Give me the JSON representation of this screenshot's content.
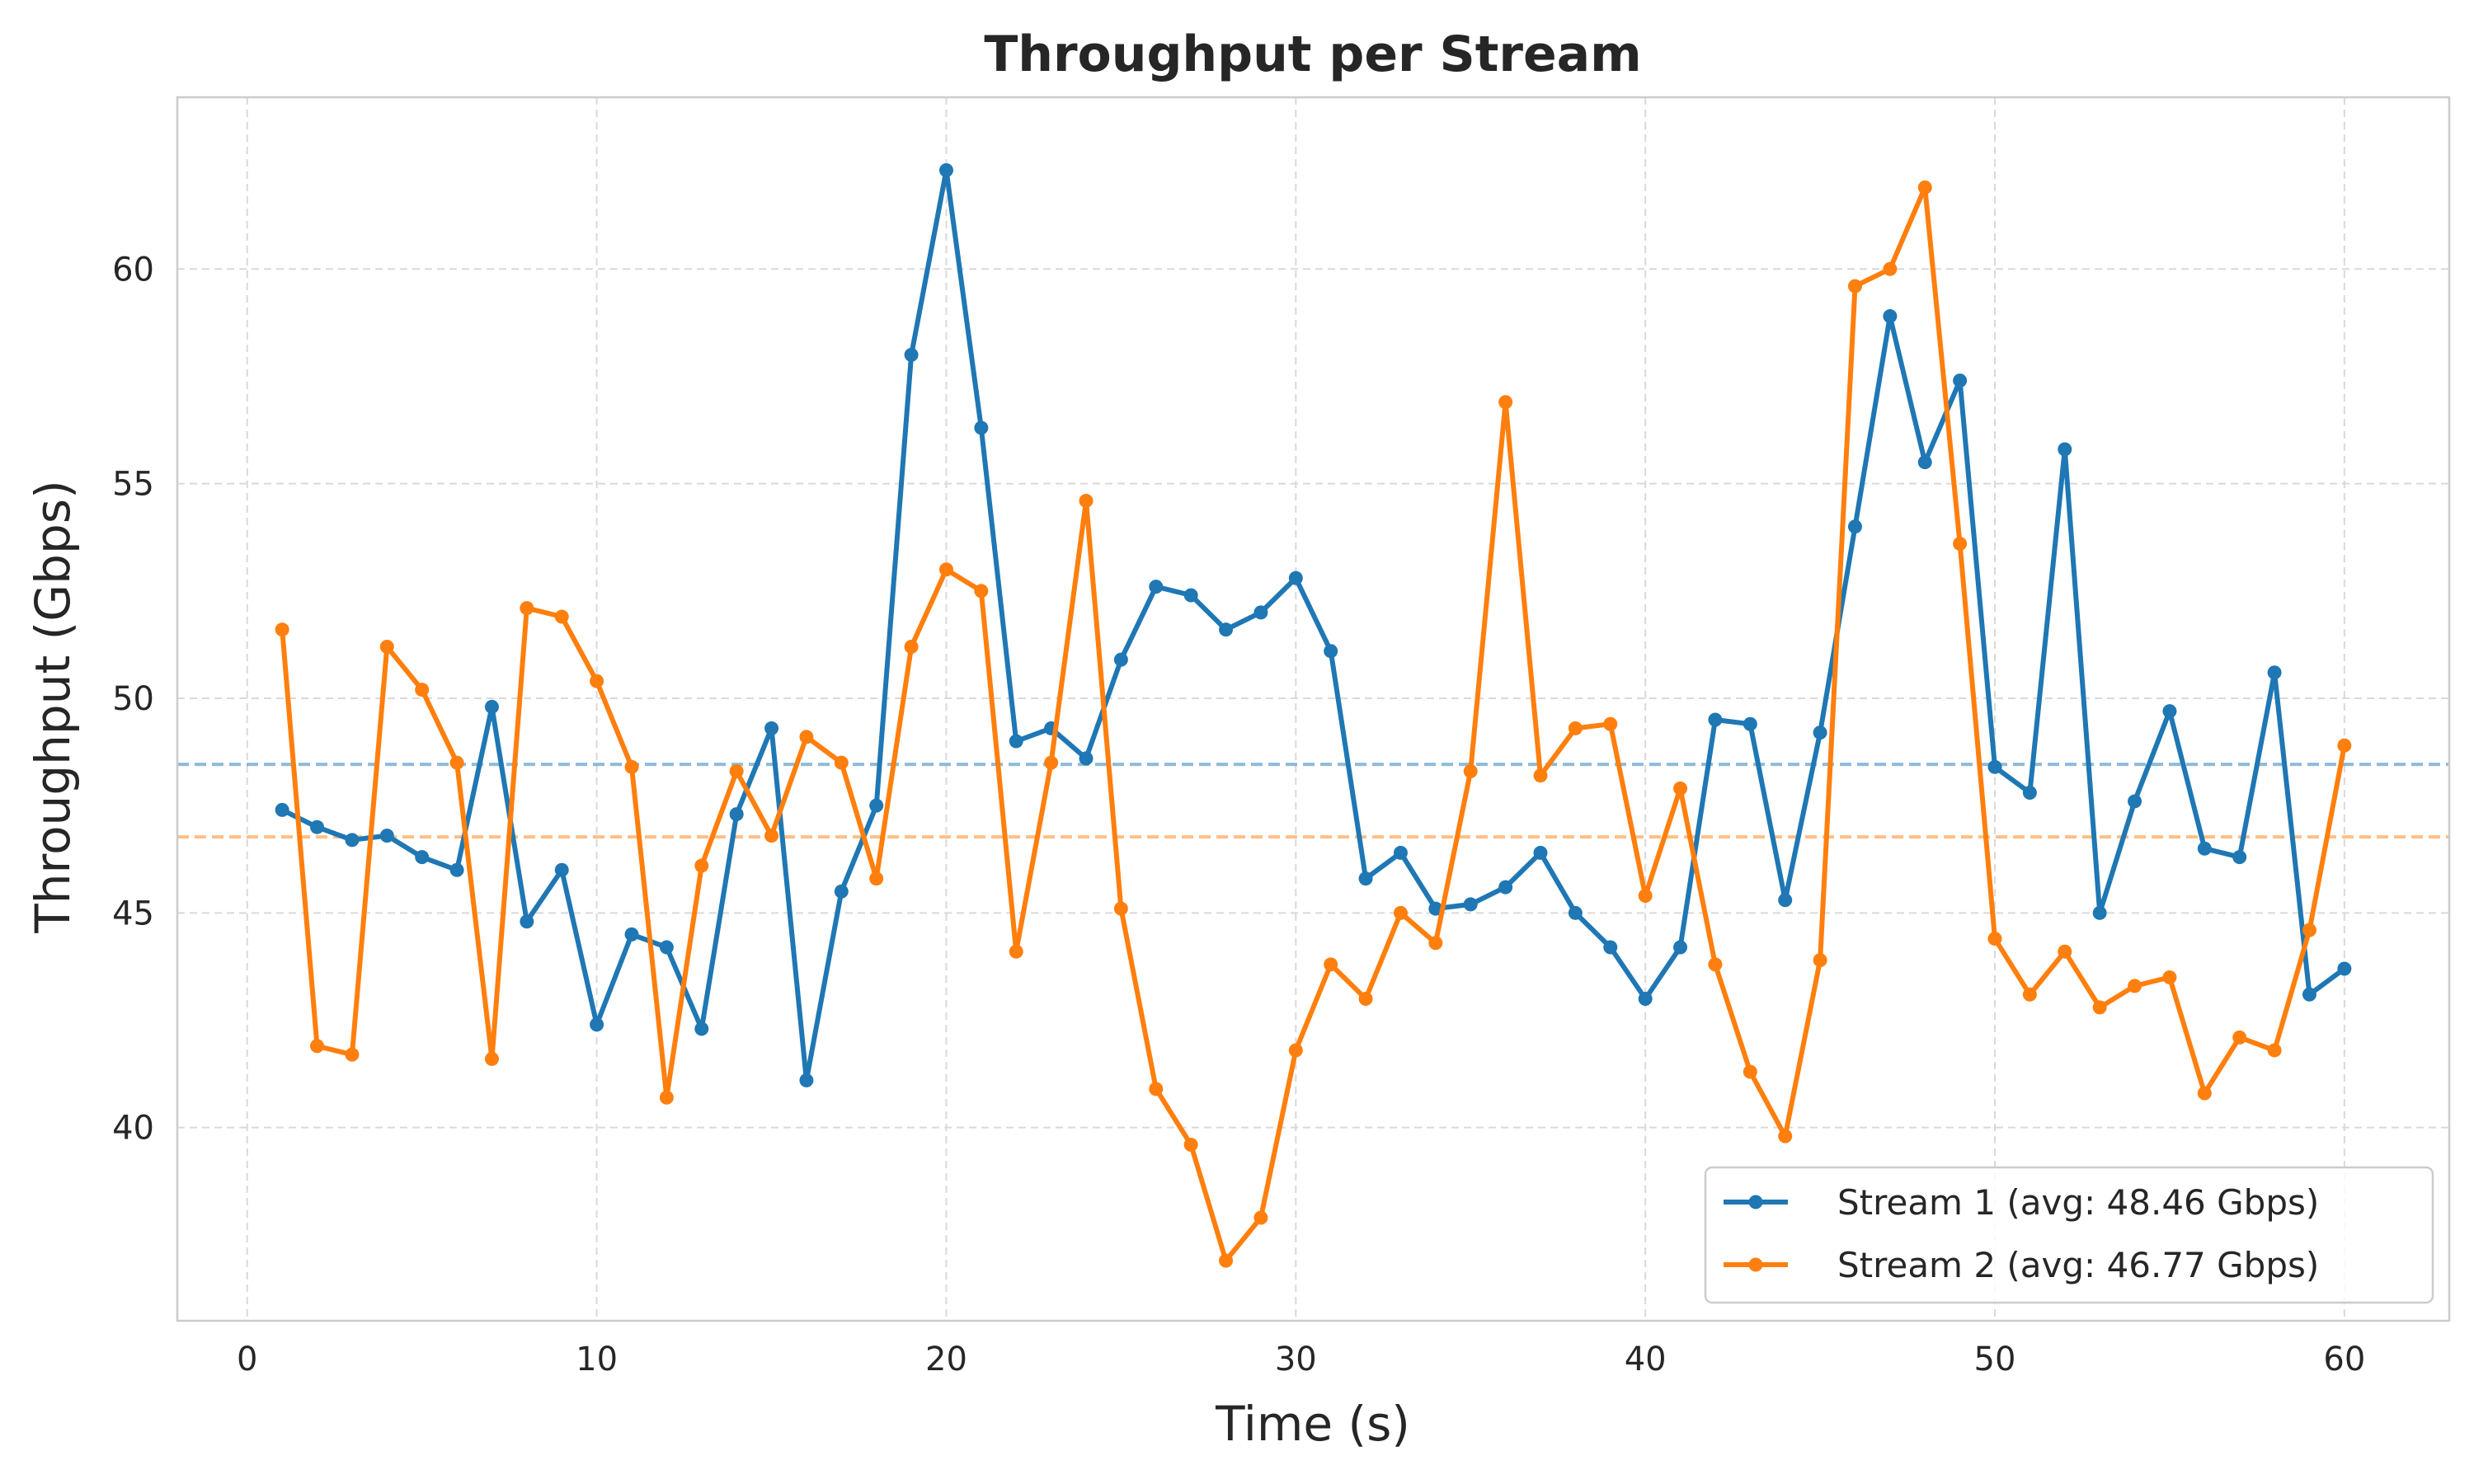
{
  "chart_data": {
    "type": "line",
    "title": "Throughput per Stream",
    "xlabel": "Time (s)",
    "ylabel": "Throughput (Gbps)",
    "xlim": [
      -2,
      63
    ],
    "ylim": [
      35.5,
      64
    ],
    "xticks": [
      0,
      10,
      20,
      30,
      40,
      50,
      60
    ],
    "yticks": [
      40,
      45,
      50,
      55,
      60
    ],
    "grid": true,
    "legend_position": "lower-right",
    "x": [
      1,
      2,
      3,
      4,
      5,
      6,
      7,
      8,
      9,
      10,
      11,
      12,
      13,
      14,
      15,
      16,
      17,
      18,
      19,
      20,
      21,
      22,
      23,
      24,
      25,
      26,
      27,
      28,
      29,
      30,
      31,
      32,
      33,
      34,
      35,
      36,
      37,
      38,
      39,
      40,
      41,
      42,
      43,
      44,
      45,
      46,
      47,
      48,
      49,
      50,
      51,
      52,
      53,
      54,
      55,
      56,
      57,
      58,
      59,
      60
    ],
    "series": [
      {
        "name": "Stream 1 (avg: 48.46 Gbps)",
        "color": "#1f77b4",
        "average": 48.46,
        "values": [
          47.4,
          47.0,
          46.7,
          46.8,
          46.3,
          46.0,
          49.8,
          44.8,
          46.0,
          42.4,
          44.5,
          44.2,
          42.3,
          47.3,
          49.3,
          41.1,
          45.5,
          47.5,
          58.0,
          62.3,
          56.3,
          49.0,
          49.3,
          48.6,
          50.9,
          52.6,
          52.4,
          51.6,
          52.0,
          52.8,
          51.1,
          45.8,
          46.4,
          45.1,
          45.2,
          45.6,
          46.4,
          45.0,
          44.2,
          43.0,
          44.2,
          49.5,
          49.4,
          45.3,
          49.2,
          54.0,
          58.9,
          55.5,
          57.4,
          48.4,
          47.8,
          55.8,
          45.0,
          47.6,
          49.7,
          46.5,
          46.3,
          50.6,
          43.1,
          43.7
        ]
      },
      {
        "name": "Stream 2 (avg: 46.77 Gbps)",
        "color": "#ff7f0e",
        "average": 46.77,
        "values": [
          51.6,
          41.9,
          41.7,
          51.2,
          50.2,
          48.5,
          41.6,
          52.1,
          51.9,
          50.4,
          48.4,
          40.7,
          46.1,
          48.3,
          46.8,
          49.1,
          48.5,
          45.8,
          51.2,
          53.0,
          52.5,
          44.1,
          48.5,
          54.6,
          45.1,
          40.9,
          39.6,
          36.9,
          37.9,
          41.8,
          43.8,
          43.0,
          45.0,
          44.3,
          48.3,
          56.9,
          48.2,
          49.3,
          49.4,
          45.4,
          47.9,
          43.8,
          41.3,
          39.8,
          43.9,
          59.6,
          60.0,
          61.9,
          53.6,
          44.4,
          43.1,
          44.1,
          42.8,
          43.3,
          43.5,
          40.8,
          42.1,
          41.8,
          44.6,
          48.9
        ]
      }
    ]
  }
}
